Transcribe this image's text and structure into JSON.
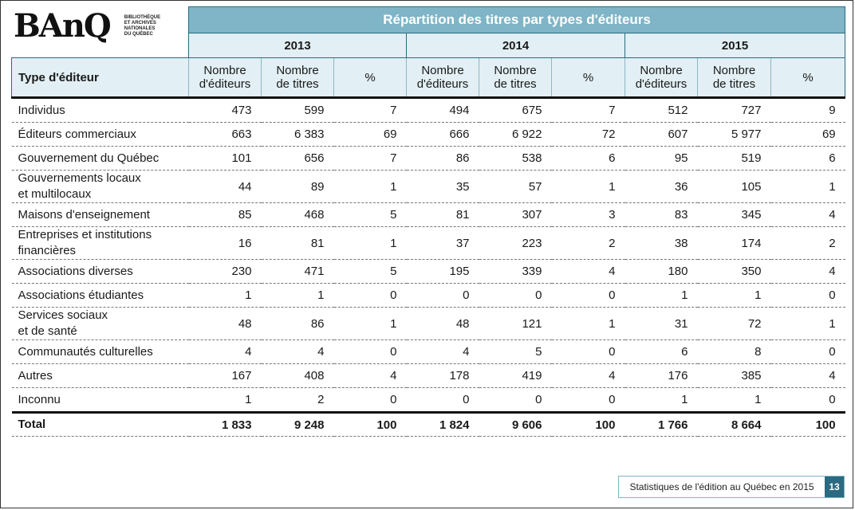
{
  "logo": {
    "wordmark": "BAnQ",
    "subtitle_lines": [
      "BIBLIOTHÈQUE",
      "ET ARCHIVES",
      "NATIONALES",
      "DU QUÉBEC"
    ]
  },
  "table": {
    "title": "Répartition des titres par types d'éditeurs",
    "years": [
      "2013",
      "2014",
      "2015"
    ],
    "first_column_header": "Type d'éditeur",
    "subheaders": [
      "Nombre\nd'éditeurs",
      "Nombre\nde titres",
      "%"
    ],
    "rows": [
      {
        "label": "Individus",
        "two_line": false,
        "values": [
          "473",
          "599",
          "7",
          "494",
          "675",
          "7",
          "512",
          "727",
          "9"
        ]
      },
      {
        "label": "Éditeurs commerciaux",
        "two_line": false,
        "values": [
          "663",
          "6 383",
          "69",
          "666",
          "6 922",
          "72",
          "607",
          "5 977",
          "69"
        ]
      },
      {
        "label": "Gouvernement du Québec",
        "two_line": false,
        "values": [
          "101",
          "656",
          "7",
          "86",
          "538",
          "6",
          "95",
          "519",
          "6"
        ]
      },
      {
        "label": "Gouvernements locaux\net multilocaux",
        "two_line": true,
        "values": [
          "44",
          "89",
          "1",
          "35",
          "57",
          "1",
          "36",
          "105",
          "1"
        ]
      },
      {
        "label": "Maisons d'enseignement",
        "two_line": false,
        "values": [
          "85",
          "468",
          "5",
          "81",
          "307",
          "3",
          "83",
          "345",
          "4"
        ]
      },
      {
        "label": "Entreprises et institutions\nfinancières",
        "two_line": true,
        "values": [
          "16",
          "81",
          "1",
          "37",
          "223",
          "2",
          "38",
          "174",
          "2"
        ]
      },
      {
        "label": "Associations diverses",
        "two_line": false,
        "values": [
          "230",
          "471",
          "5",
          "195",
          "339",
          "4",
          "180",
          "350",
          "4"
        ]
      },
      {
        "label": "Associations étudiantes",
        "two_line": false,
        "values": [
          "1",
          "1",
          "0",
          "0",
          "0",
          "0",
          "1",
          "1",
          "0"
        ]
      },
      {
        "label": "Services sociaux\net de santé",
        "two_line": true,
        "values": [
          "48",
          "86",
          "1",
          "48",
          "121",
          "1",
          "31",
          "72",
          "1"
        ]
      },
      {
        "label": "Communautés culturelles",
        "two_line": false,
        "values": [
          "4",
          "4",
          "0",
          "4",
          "5",
          "0",
          "6",
          "8",
          "0"
        ]
      },
      {
        "label": "Autres",
        "two_line": false,
        "values": [
          "167",
          "408",
          "4",
          "178",
          "419",
          "4",
          "176",
          "385",
          "4"
        ]
      },
      {
        "label": "Inconnu",
        "two_line": false,
        "values": [
          "1",
          "2",
          "0",
          "0",
          "0",
          "0",
          "1",
          "1",
          "0"
        ]
      }
    ],
    "total": {
      "label": "Total",
      "values": [
        "1 833",
        "9 248",
        "100",
        "1 824",
        "9 606",
        "100",
        "1 766",
        "8 664",
        "100"
      ]
    }
  },
  "footer": {
    "text": "Statistiques de l'édition au Québec en 2015",
    "page_number": "13"
  },
  "colors": {
    "banner": "#7fb5c6",
    "header_fill": "#e2eff4",
    "accent": "#2b6a80"
  }
}
